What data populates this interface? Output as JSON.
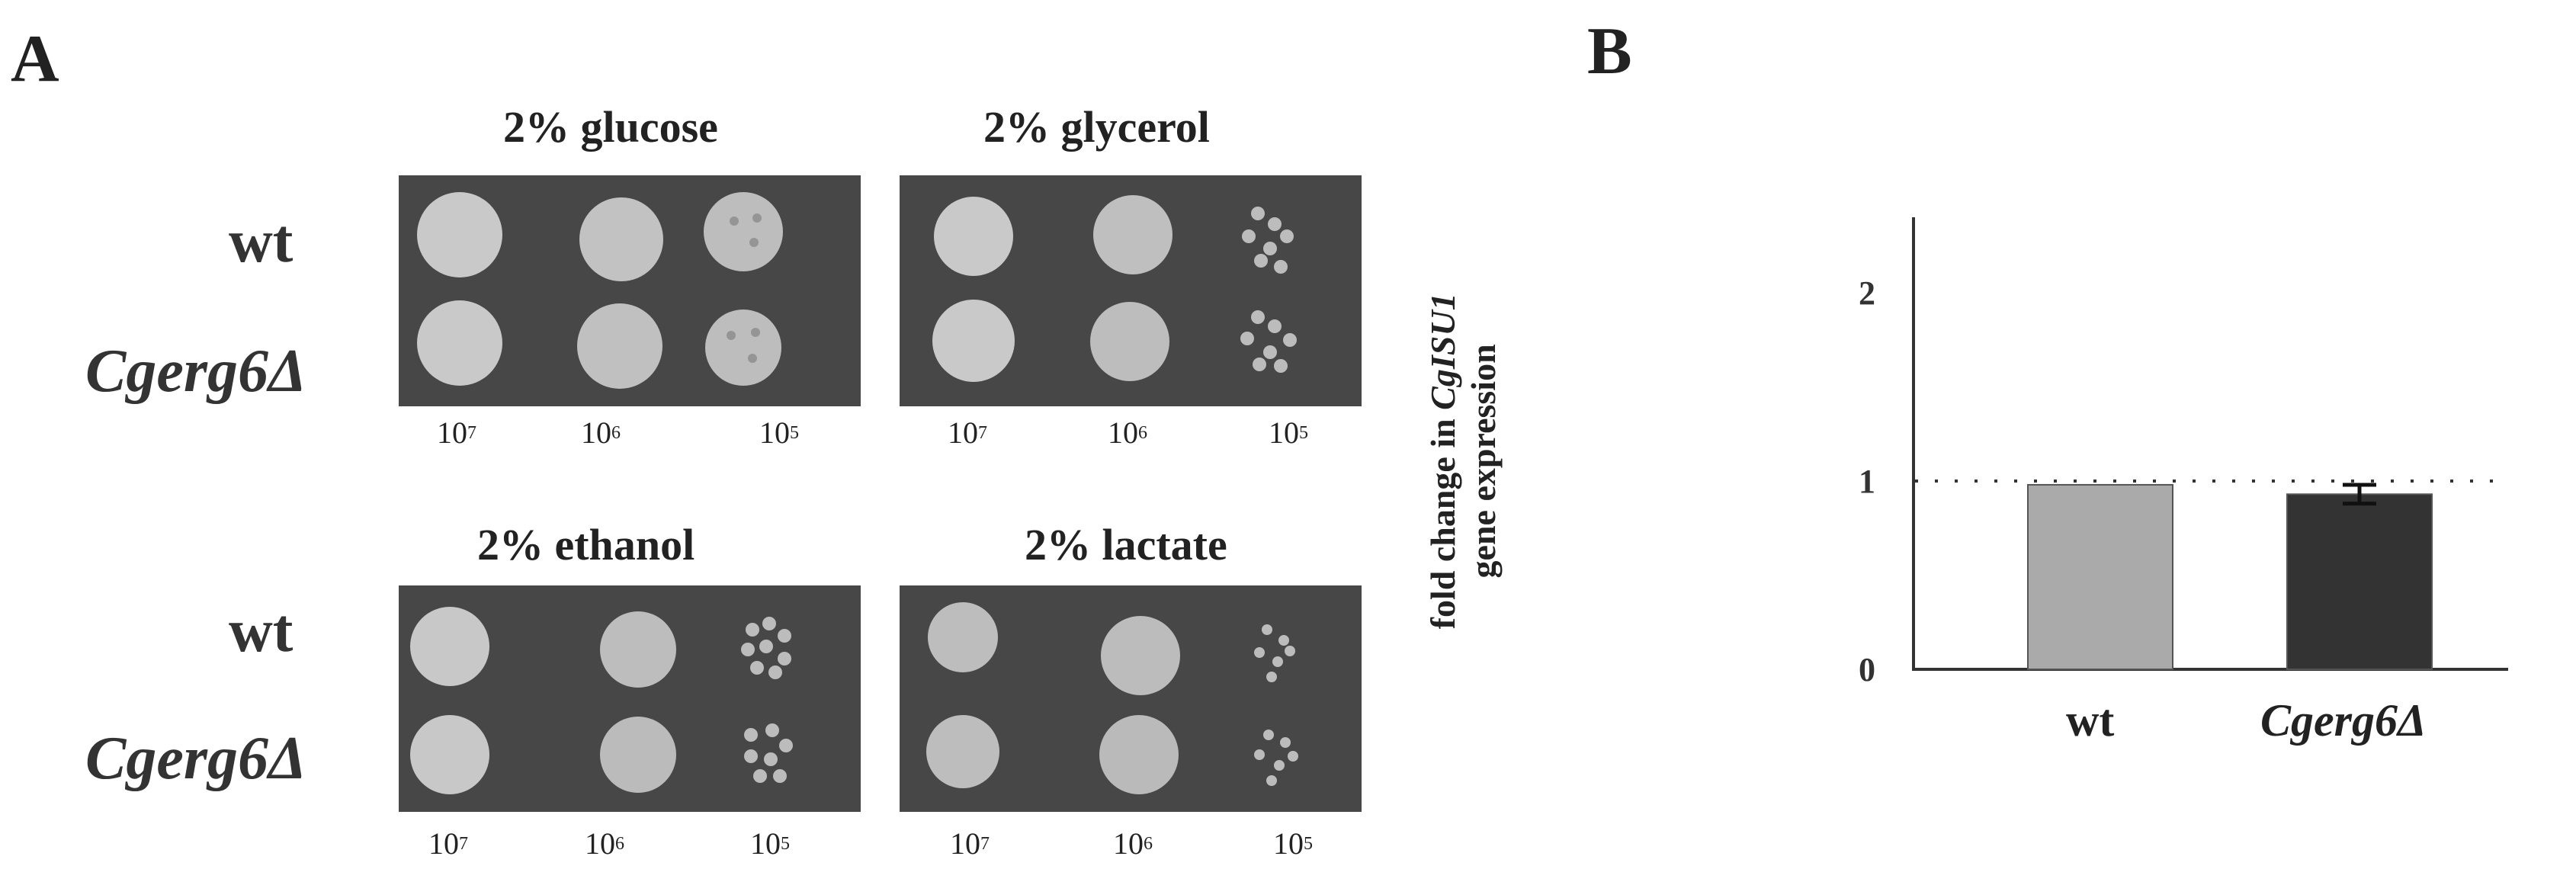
{
  "panel_a": {
    "label": "A",
    "plates": [
      {
        "title": "2% glucose"
      },
      {
        "title": "2% glycerol"
      },
      {
        "title": "2% ethanol"
      },
      {
        "title": "2% lactate"
      }
    ],
    "strains": [
      "wt",
      "Cgerg6Δ"
    ],
    "dilutions": [
      {
        "base": "10",
        "exp": "7"
      },
      {
        "base": "10",
        "exp": "6"
      },
      {
        "base": "10",
        "exp": "5"
      }
    ]
  },
  "panel_b": {
    "label": "B",
    "ylabel_pre": "fold change in ",
    "ylabel_gene": "CgISU1",
    "ylabel_line2": "gene expression",
    "chart_data": {
      "type": "bar",
      "categories": [
        "wt",
        "Cgerg6Δ"
      ],
      "values": [
        0.98,
        0.93
      ],
      "error": [
        null,
        0.05
      ],
      "bar_colors": [
        "#aaaaaa",
        "#333333"
      ],
      "yticks": [
        0,
        1,
        2
      ],
      "ylim": [
        0,
        2.35
      ],
      "reference_line": 1,
      "grid": false
    }
  }
}
